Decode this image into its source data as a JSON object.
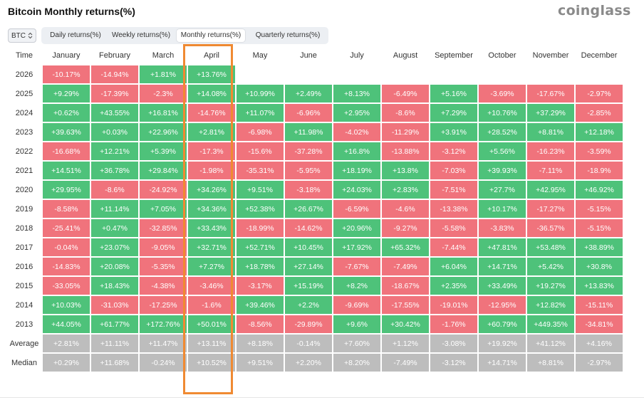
{
  "title": "Bitcoin Monthly returns(%)",
  "brand": "coinglass",
  "asset": {
    "selected": "BTC",
    "icon": "chevron-updown-icon"
  },
  "tabs": [
    {
      "label": "Daily returns(%)",
      "active": false
    },
    {
      "label": "Weekly returns(%)",
      "active": false
    },
    {
      "label": "Monthly returns(%)",
      "active": true
    },
    {
      "label": "Quarterly returns(%)",
      "active": false
    }
  ],
  "colors": {
    "positive": "#4ec27a",
    "negative": "#f0737c",
    "summary": "#bdbdbd",
    "highlight": "#f08a32"
  },
  "highlighted_column": "April",
  "table": {
    "headers": [
      "Time",
      "January",
      "February",
      "March",
      "April",
      "May",
      "June",
      "July",
      "August",
      "September",
      "October",
      "November",
      "December"
    ],
    "rows": [
      {
        "label": "2026",
        "values": [
          "-10.17%",
          "-14.94%",
          "+1.81%",
          "+13.76%",
          "",
          "",
          "",
          "",
          "",
          "",
          "",
          ""
        ]
      },
      {
        "label": "2025",
        "values": [
          "+9.29%",
          "-17.39%",
          "-2.3%",
          "+14.08%",
          "+10.99%",
          "+2.49%",
          "+8.13%",
          "-6.49%",
          "+5.16%",
          "-3.69%",
          "-17.67%",
          "-2.97%"
        ]
      },
      {
        "label": "2024",
        "values": [
          "+0.62%",
          "+43.55%",
          "+16.81%",
          "-14.76%",
          "+11.07%",
          "-6.96%",
          "+2.95%",
          "-8.6%",
          "+7.29%",
          "+10.76%",
          "+37.29%",
          "-2.85%"
        ]
      },
      {
        "label": "2023",
        "values": [
          "+39.63%",
          "+0.03%",
          "+22.96%",
          "+2.81%",
          "-6.98%",
          "+11.98%",
          "-4.02%",
          "-11.29%",
          "+3.91%",
          "+28.52%",
          "+8.81%",
          "+12.18%"
        ]
      },
      {
        "label": "2022",
        "values": [
          "-16.68%",
          "+12.21%",
          "+5.39%",
          "-17.3%",
          "-15.6%",
          "-37.28%",
          "+16.8%",
          "-13.88%",
          "-3.12%",
          "+5.56%",
          "-16.23%",
          "-3.59%"
        ]
      },
      {
        "label": "2021",
        "values": [
          "+14.51%",
          "+36.78%",
          "+29.84%",
          "-1.98%",
          "-35.31%",
          "-5.95%",
          "+18.19%",
          "+13.8%",
          "-7.03%",
          "+39.93%",
          "-7.11%",
          "-18.9%"
        ]
      },
      {
        "label": "2020",
        "values": [
          "+29.95%",
          "-8.6%",
          "-24.92%",
          "+34.26%",
          "+9.51%",
          "-3.18%",
          "+24.03%",
          "+2.83%",
          "-7.51%",
          "+27.7%",
          "+42.95%",
          "+46.92%"
        ]
      },
      {
        "label": "2019",
        "values": [
          "-8.58%",
          "+11.14%",
          "+7.05%",
          "+34.36%",
          "+52.38%",
          "+26.67%",
          "-6.59%",
          "-4.6%",
          "-13.38%",
          "+10.17%",
          "-17.27%",
          "-5.15%"
        ]
      },
      {
        "label": "2018",
        "values": [
          "-25.41%",
          "+0.47%",
          "-32.85%",
          "+33.43%",
          "-18.99%",
          "-14.62%",
          "+20.96%",
          "-9.27%",
          "-5.58%",
          "-3.83%",
          "-36.57%",
          "-5.15%"
        ]
      },
      {
        "label": "2017",
        "values": [
          "-0.04%",
          "+23.07%",
          "-9.05%",
          "+32.71%",
          "+52.71%",
          "+10.45%",
          "+17.92%",
          "+65.32%",
          "-7.44%",
          "+47.81%",
          "+53.48%",
          "+38.89%"
        ]
      },
      {
        "label": "2016",
        "values": [
          "-14.83%",
          "+20.08%",
          "-5.35%",
          "+7.27%",
          "+18.78%",
          "+27.14%",
          "-7.67%",
          "-7.49%",
          "+6.04%",
          "+14.71%",
          "+5.42%",
          "+30.8%"
        ]
      },
      {
        "label": "2015",
        "values": [
          "-33.05%",
          "+18.43%",
          "-4.38%",
          "-3.46%",
          "-3.17%",
          "+15.19%",
          "+8.2%",
          "-18.67%",
          "+2.35%",
          "+33.49%",
          "+19.27%",
          "+13.83%"
        ]
      },
      {
        "label": "2014",
        "values": [
          "+10.03%",
          "-31.03%",
          "-17.25%",
          "-1.6%",
          "+39.46%",
          "+2.2%",
          "-9.69%",
          "-17.55%",
          "-19.01%",
          "-12.95%",
          "+12.82%",
          "-15.11%"
        ]
      },
      {
        "label": "2013",
        "values": [
          "+44.05%",
          "+61.77%",
          "+172.76%",
          "+50.01%",
          "-8.56%",
          "-29.89%",
          "+9.6%",
          "+30.42%",
          "-1.76%",
          "+60.79%",
          "+449.35%",
          "-34.81%"
        ]
      }
    ],
    "summary_rows": [
      {
        "label": "Average",
        "values": [
          "+2.81%",
          "+11.11%",
          "+11.47%",
          "+13.11%",
          "+8.18%",
          "-0.14%",
          "+7.60%",
          "+1.12%",
          "-3.08%",
          "+19.92%",
          "+41.12%",
          "+4.16%"
        ]
      },
      {
        "label": "Median",
        "values": [
          "+0.29%",
          "+11.68%",
          "-0.24%",
          "+10.52%",
          "+9.51%",
          "+2.20%",
          "+8.20%",
          "-7.49%",
          "-3.12%",
          "+14.71%",
          "+8.81%",
          "-2.97%"
        ]
      }
    ]
  }
}
